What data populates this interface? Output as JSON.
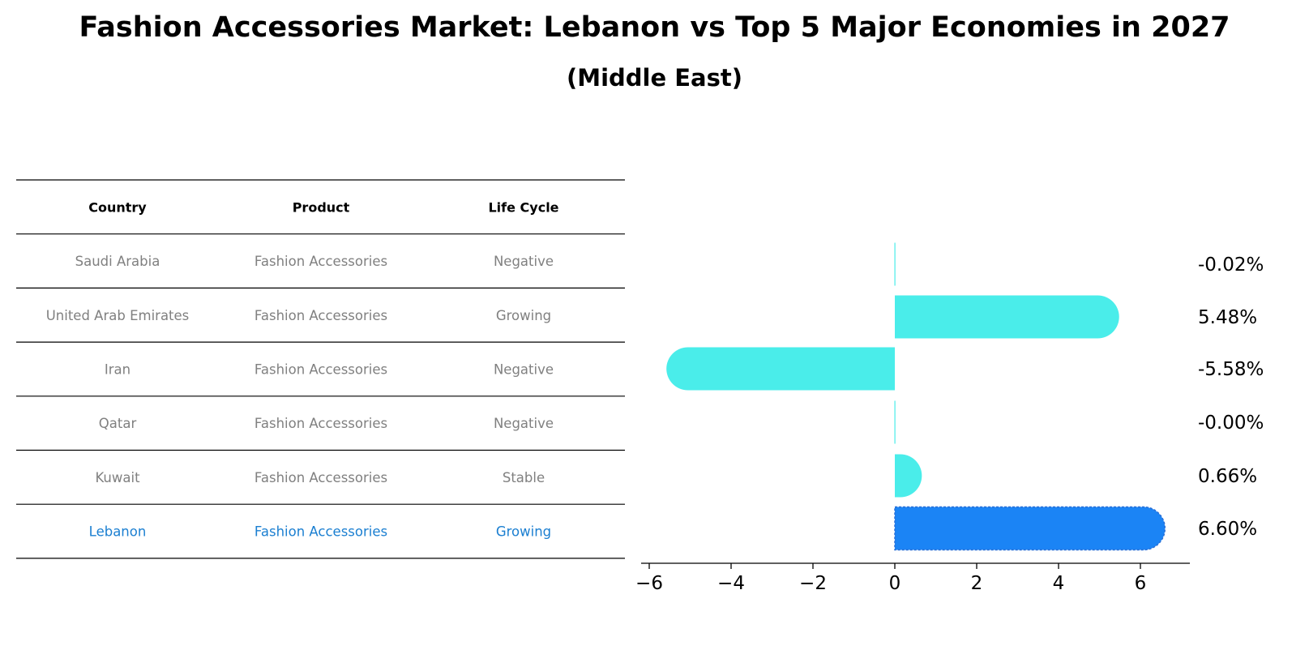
{
  "title": "Fashion Accessories Market: Lebanon vs Top 5 Major Economies in 2027",
  "subtitle": "(Middle East)",
  "colors": {
    "bar": "#4aedea",
    "highlight_bar": "#1b84f5",
    "row_text": "#808080",
    "highlight_text": "#1b7fd1",
    "rule": "#000000"
  },
  "table": {
    "headers": [
      "Country",
      "Product",
      "Life Cycle"
    ],
    "rows": [
      [
        "Saudi Arabia",
        "Fashion Accessories",
        "Negative"
      ],
      [
        "United Arab Emirates",
        "Fashion Accessories",
        "Growing"
      ],
      [
        "Iran",
        "Fashion Accessories",
        "Negative"
      ],
      [
        "Qatar",
        "Fashion Accessories",
        "Negative"
      ],
      [
        "Kuwait",
        "Fashion Accessories",
        "Stable"
      ],
      [
        "Lebanon",
        "Fashion Accessories",
        "Growing"
      ]
    ],
    "highlight_row": 5
  },
  "chart_data": {
    "type": "bar",
    "orientation": "horizontal",
    "categories": [
      "Saudi Arabia",
      "United Arab Emirates",
      "Iran",
      "Qatar",
      "Kuwait",
      "Lebanon"
    ],
    "values": [
      -0.02,
      5.48,
      -5.58,
      -0.0,
      0.66,
      6.6
    ],
    "value_labels": [
      "-0.02%",
      "5.48%",
      "-5.58%",
      "-0.00%",
      "0.66%",
      "6.60%"
    ],
    "highlight_index": 5,
    "xlim": [
      -6.2,
      7.2
    ],
    "xticks": [
      -6,
      -4,
      -2,
      0,
      2,
      4,
      6
    ],
    "xtick_labels": [
      "−6",
      "−4",
      "−2",
      "0",
      "2",
      "4",
      "6"
    ],
    "xlabel": "",
    "ylabel": "",
    "grid": false
  }
}
